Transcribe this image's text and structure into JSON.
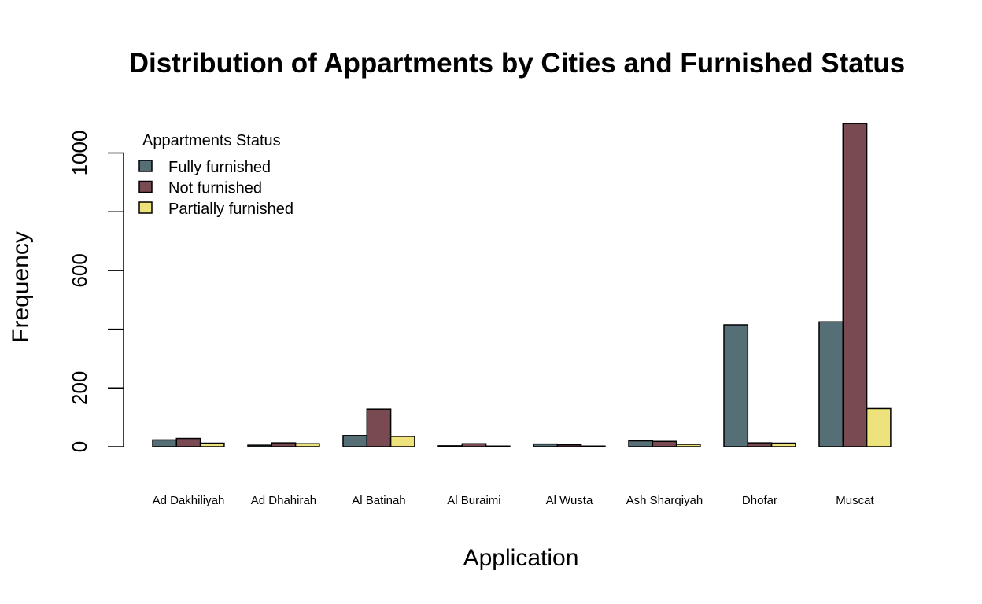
{
  "chart_data": {
    "type": "bar",
    "title": "Distribution of Appartments by Cities and Furnished Status",
    "xlabel": "Application",
    "ylabel": "Frequency",
    "ylim": [
      0,
      1100
    ],
    "yticks": [
      0,
      200,
      600,
      1000
    ],
    "categories": [
      "Ad Dakhiliyah",
      "Ad Dhahirah",
      "Al Batinah",
      "Al Buraimi",
      "Al Wusta",
      "Ash Sharqiyah",
      "Dhofar",
      "Muscat"
    ],
    "legend_title": "Appartments Status",
    "legend_position": "top-left",
    "grid": false,
    "series": [
      {
        "name": "Fully furnished",
        "color": "#566e75",
        "values": [
          23,
          5,
          38,
          3,
          9,
          20,
          415,
          425
        ]
      },
      {
        "name": "Not furnished",
        "color": "#7a4a52",
        "values": [
          28,
          13,
          128,
          10,
          6,
          18,
          13,
          1100
        ]
      },
      {
        "name": "Partially furnished",
        "color": "#ede27b",
        "values": [
          12,
          10,
          35,
          2,
          2,
          8,
          12,
          130
        ]
      }
    ]
  }
}
